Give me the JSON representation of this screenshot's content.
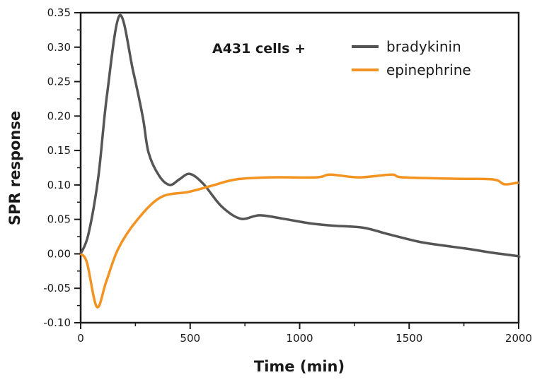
{
  "chart_data": {
    "type": "line",
    "title": "",
    "xlabel": "Time (min)",
    "ylabel": "SPR response",
    "xlim": [
      0,
      2000
    ],
    "ylim": [
      -0.1,
      0.35
    ],
    "xticks": [
      0,
      500,
      1000,
      1500,
      2000
    ],
    "xtick_labels": [
      "0",
      "500",
      "1000",
      "1500",
      "2000"
    ],
    "yticks": [
      -0.1,
      -0.05,
      0.0,
      0.05,
      0.1,
      0.15,
      0.2,
      0.25,
      0.3,
      0.35
    ],
    "ytick_labels": [
      "-0.10",
      "-0.05",
      "0.00",
      "0.05",
      "0.10",
      "0.15",
      "0.20",
      "0.25",
      "0.30",
      "0.35"
    ],
    "grid": false,
    "legend_title": "A431 cells +",
    "legend_position": "top-right",
    "series": [
      {
        "name": "bradykinin",
        "color": "#555555",
        "x": [
          0,
          35,
          80,
          120,
          178,
          239,
          284,
          310,
          359,
          407,
          450,
          498,
          559,
          643,
          730,
          817,
          924,
          1053,
          1150,
          1289,
          1399,
          1538,
          1635,
          1774,
          1871,
          1990,
          2000
        ],
        "y": [
          0,
          0.028,
          0.11,
          0.23,
          0.346,
          0.266,
          0.198,
          0.147,
          0.113,
          0.1,
          0.108,
          0.116,
          0.102,
          0.069,
          0.051,
          0.056,
          0.051,
          0.044,
          0.041,
          0.038,
          0.029,
          0.018,
          0.013,
          0.007,
          0.002,
          -0.003,
          -0.004
        ]
      },
      {
        "name": "epinephrine",
        "color": "#f39322",
        "x": [
          0,
          29,
          74,
          116,
          171,
          255,
          365,
          494,
          601,
          708,
          869,
          1076,
          1140,
          1270,
          1418,
          1473,
          1722,
          1884,
          1935,
          1990,
          2000
        ],
        "y": [
          0,
          -0.013,
          -0.077,
          -0.041,
          0.007,
          0.048,
          0.082,
          0.09,
          0.099,
          0.108,
          0.111,
          0.111,
          0.115,
          0.111,
          0.115,
          0.111,
          0.109,
          0.108,
          0.101,
          0.103,
          0.103
        ]
      }
    ]
  }
}
